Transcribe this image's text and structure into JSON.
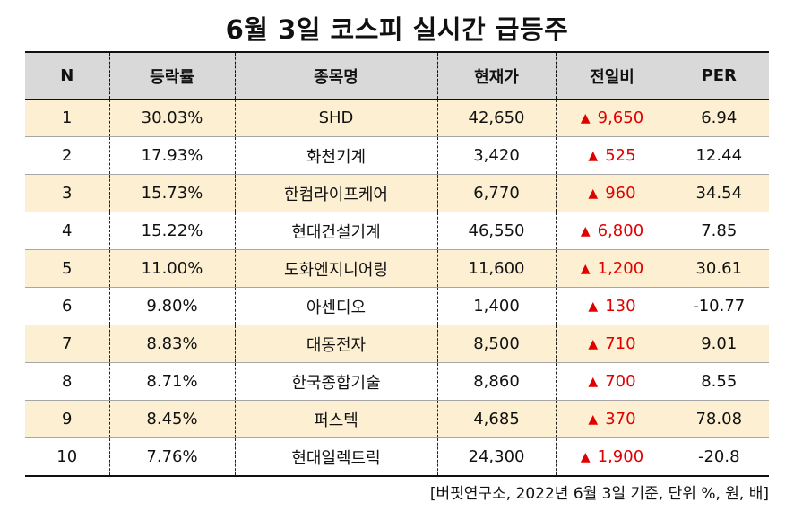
{
  "title": "6월 3일 코스피 실시간 급등주",
  "columns": [
    "N",
    "등락률",
    "종목명",
    "현재가",
    "전일비",
    "PER"
  ],
  "rows": [
    {
      "n": "1",
      "rate": "30.03%",
      "name": "SHD",
      "price": "42,650",
      "change": "9,650",
      "per": "6.94"
    },
    {
      "n": "2",
      "rate": "17.93%",
      "name": "화천기계",
      "price": "3,420",
      "change": "525",
      "per": "12.44"
    },
    {
      "n": "3",
      "rate": "15.73%",
      "name": "한컴라이프케어",
      "price": "6,770",
      "change": "960",
      "per": "34.54"
    },
    {
      "n": "4",
      "rate": "15.22%",
      "name": "현대건설기계",
      "price": "46,550",
      "change": "6,800",
      "per": "7.85"
    },
    {
      "n": "5",
      "rate": "11.00%",
      "name": "도화엔지니어링",
      "price": "11,600",
      "change": "1,200",
      "per": "30.61"
    },
    {
      "n": "6",
      "rate": "9.80%",
      "name": "아센디오",
      "price": "1,400",
      "change": "130",
      "per": "-10.77"
    },
    {
      "n": "7",
      "rate": "8.83%",
      "name": "대동전자",
      "price": "8,500",
      "change": "710",
      "per": "9.01"
    },
    {
      "n": "8",
      "rate": "8.71%",
      "name": "한국종합기술",
      "price": "8,860",
      "change": "700",
      "per": "8.55"
    },
    {
      "n": "9",
      "rate": "8.45%",
      "name": "퍼스텍",
      "price": "4,685",
      "change": "370",
      "per": "78.08"
    },
    {
      "n": "10",
      "rate": "7.76%",
      "name": "현대일렉트릭",
      "price": "24,300",
      "change": "1,900",
      "per": "-20.8"
    }
  ],
  "up_arrow": "▲",
  "up_color": "#e00000",
  "stripe_color": "#fdf0d2",
  "header_color": "#d9d9d9",
  "footnote": "[버핏연구소, 2022년 6월 3일 기준, 단위 %, 원, 배]"
}
